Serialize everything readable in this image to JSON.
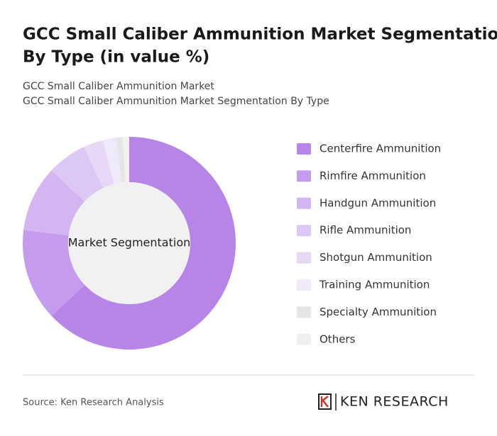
{
  "chart_data": {
    "type": "donut",
    "title": [
      "GCC Small Caliber Ammunition Market Segmentation",
      "By Type (in value %)"
    ],
    "subtitle": [
      "GCC Small Caliber Ammunition Market",
      "GCC Small Caliber Ammunition Market Segmentation By Type"
    ],
    "center_label": "Market Segmentation",
    "categories": [
      "Centerfire Ammunition",
      "Rimfire Ammunition",
      "Handgun Ammunition",
      "Rifle Ammunition",
      "Shotgun Ammunition",
      "Training Ammunition",
      "Specialty Ammunition",
      "Others"
    ],
    "values": [
      63,
      14,
      10,
      6,
      3,
      2,
      1,
      1
    ],
    "colors": [
      "#b784e8",
      "#c49bed",
      "#d3b5f2",
      "#ddc7f5",
      "#e7d8f8",
      "#f0e8fb",
      "#e5e5e5",
      "#f0f0f0"
    ],
    "source": "Source: Ken Research Analysis",
    "logo": "KEN RESEARCH"
  }
}
